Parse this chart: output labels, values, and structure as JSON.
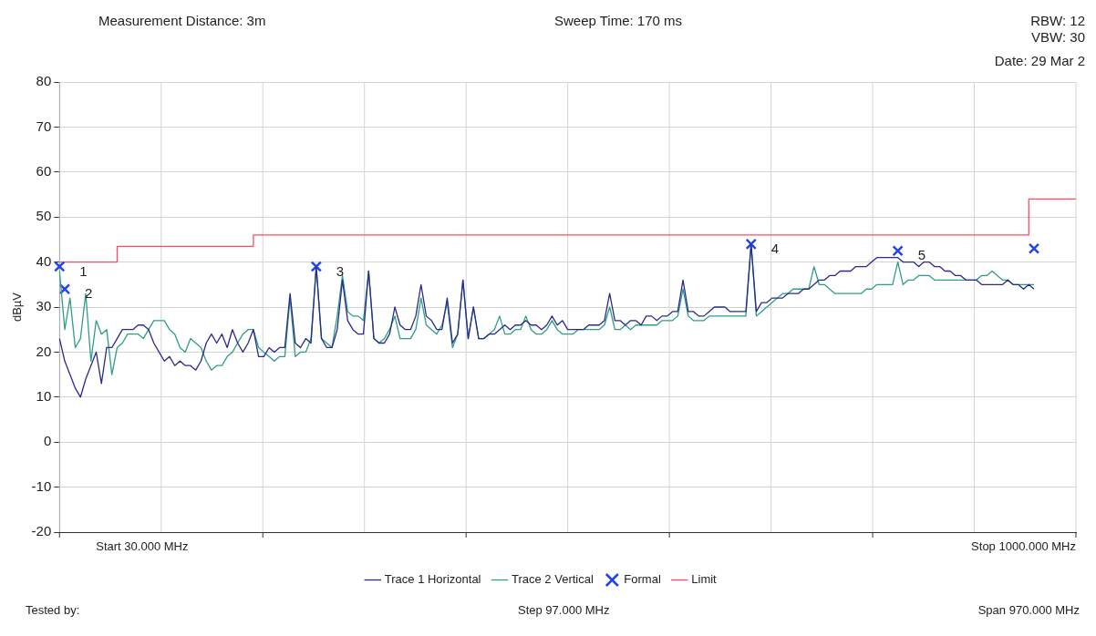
{
  "chart_data": {
    "type": "line",
    "ylabel": "dBµV",
    "categories": [
      null,
      null,
      null,
      null,
      null,
      null,
      null,
      null,
      null,
      null,
      null,
      null,
      null,
      null,
      null,
      null,
      null,
      null,
      null,
      null,
      null,
      null,
      null,
      null,
      null,
      null,
      null,
      null,
      null,
      null,
      null,
      null,
      null,
      null,
      null,
      null,
      null,
      null,
      null,
      null,
      null,
      null,
      null,
      null,
      null,
      null,
      null,
      null,
      null,
      null,
      null,
      null,
      null,
      null,
      null,
      null,
      null,
      null,
      null,
      null,
      null,
      null,
      null,
      null,
      null,
      null,
      null,
      null,
      null,
      null,
      null,
      null,
      null,
      null,
      null,
      null,
      null,
      null,
      null,
      null,
      null,
      null,
      null,
      null,
      null,
      null,
      null,
      null,
      null,
      null,
      null,
      null,
      null,
      null,
      null,
      null,
      null,
      null,
      null,
      null,
      null,
      null,
      null,
      null,
      null,
      null,
      null,
      null,
      null,
      null,
      null,
      null,
      null,
      null,
      null,
      null,
      null,
      null,
      null,
      null,
      null,
      null,
      null,
      null,
      null,
      null,
      null,
      null,
      null,
      null,
      null,
      null,
      null,
      null,
      null,
      null,
      null,
      null,
      null,
      null,
      null,
      null,
      null,
      null,
      null,
      null,
      null,
      null,
      null,
      null,
      null,
      null,
      null,
      null,
      null,
      null,
      null,
      null,
      null,
      null,
      null,
      null,
      null,
      null,
      null,
      null,
      null,
      null,
      null,
      null,
      null,
      null,
      null,
      null,
      null,
      null,
      null,
      null,
      null,
      null,
      null,
      null,
      null,
      null,
      null,
      null,
      null,
      null,
      null,
      null,
      null,
      null,
      null,
      null,
      null
    ],
    "ylim": [
      -20,
      80
    ],
    "yticks": [
      -20,
      -10,
      0,
      10,
      20,
      30,
      40,
      50,
      60,
      70,
      80
    ],
    "tick_labels": "y",
    "grid": true,
    "legend": "bottom",
    "annotations": [
      "Measurement Distance: 3m",
      "Sweep Time: 170 ms",
      "RBW: 12",
      "VBW: 30",
      "Date: 29 Mar 2",
      "Tested by:",
      "Start 30.000 MHz",
      "Stop 1000.000 MHz",
      "Step 97.000 MHz",
      "Span 970.000 MHz",
      "1",
      "2",
      "3",
      "4",
      "5"
    ],
    "series": [
      {
        "name": "Trace 1 Horizontal",
        "type": "line",
        "color": "#2b2a8c",
        "values": [
          23,
          18,
          15,
          12,
          10,
          14,
          17,
          20,
          13,
          21,
          21,
          23,
          25,
          25,
          25,
          26,
          26,
          25,
          22,
          20,
          18,
          19,
          17,
          18,
          17,
          17,
          16,
          18,
          22,
          24,
          22,
          24,
          21,
          25,
          22,
          20,
          22,
          25,
          19,
          19,
          21,
          20,
          21,
          21,
          33,
          22,
          21,
          23,
          22,
          39,
          23,
          21,
          21,
          25,
          36,
          27,
          25,
          24,
          24,
          38,
          23,
          22,
          22,
          24,
          30,
          26,
          25,
          25,
          28,
          35,
          28,
          27,
          25,
          25,
          32,
          22,
          24,
          36,
          23,
          30,
          23,
          23,
          24,
          24,
          25,
          26,
          25,
          26,
          26,
          27,
          26,
          26,
          25,
          26,
          28,
          26,
          27,
          25,
          25,
          25,
          25,
          26,
          26,
          26,
          27,
          33,
          27,
          27,
          26,
          27,
          27,
          26,
          28,
          28,
          27,
          28,
          28,
          29,
          29,
          36,
          29,
          29,
          28,
          28,
          29,
          30,
          30,
          30,
          29,
          29,
          29,
          29,
          44,
          29,
          31,
          31,
          32,
          32,
          32,
          33,
          33,
          33,
          34,
          34,
          35,
          36,
          36,
          37,
          37,
          38,
          38,
          38,
          39,
          39,
          39,
          40,
          41,
          41,
          41,
          41,
          41,
          40,
          40,
          40,
          39,
          40,
          40,
          39,
          39,
          38,
          38,
          37,
          37,
          36,
          36,
          36,
          35,
          35,
          35,
          35,
          35,
          36,
          35,
          35,
          34,
          35,
          34,
          null,
          null,
          null,
          null,
          null,
          null,
          null,
          null
        ]
      },
      {
        "name": "Trace 2 Vertical",
        "type": "line",
        "color": "#2f9e86",
        "values": [
          38,
          25,
          32,
          21,
          23,
          33,
          18,
          27,
          24,
          25,
          15,
          21,
          22,
          24,
          24,
          24,
          23,
          25,
          27,
          27,
          27,
          25,
          24,
          21,
          20,
          23,
          22,
          21,
          18,
          16,
          17,
          17,
          19,
          20,
          22,
          24,
          25,
          25,
          21,
          20,
          19,
          18,
          19,
          19,
          32,
          19,
          20,
          20,
          23,
          39,
          23,
          22,
          21,
          28,
          37,
          29,
          28,
          28,
          27,
          38,
          23,
          22,
          23,
          25,
          28,
          23,
          23,
          23,
          25,
          32,
          26,
          25,
          24,
          26,
          31,
          21,
          24,
          36,
          23,
          30,
          23,
          23,
          24,
          25,
          28,
          24,
          24,
          25,
          25,
          28,
          25,
          24,
          24,
          25,
          27,
          25,
          24,
          24,
          24,
          25,
          25,
          25,
          25,
          25,
          26,
          30,
          25,
          25,
          26,
          25,
          26,
          26,
          26,
          26,
          26,
          27,
          27,
          27,
          28,
          34,
          28,
          27,
          27,
          27,
          28,
          28,
          28,
          28,
          28,
          28,
          28,
          28,
          44,
          28,
          29,
          30,
          31,
          32,
          33,
          33,
          34,
          34,
          34,
          34,
          39,
          35,
          35,
          34,
          33,
          33,
          33,
          33,
          33,
          33,
          34,
          34,
          35,
          35,
          35,
          35,
          40,
          35,
          36,
          36,
          37,
          37,
          37,
          36,
          36,
          36,
          36,
          36,
          36,
          36,
          36,
          36,
          37,
          37,
          38,
          37,
          36,
          36,
          35,
          35,
          35,
          35,
          35,
          null,
          null,
          null,
          null,
          null,
          null,
          null,
          null
        ]
      },
      {
        "name": "Formal",
        "type": "scatter",
        "color": "#2244ee",
        "marker": "cross",
        "values": [
          39,
          34,
          null,
          null,
          null,
          null,
          null,
          null,
          null,
          null,
          null,
          null,
          null,
          null,
          null,
          null,
          null,
          null,
          null,
          null,
          null,
          null,
          null,
          null,
          null,
          null,
          null,
          null,
          null,
          null,
          null,
          null,
          null,
          null,
          null,
          null,
          null,
          null,
          null,
          null,
          null,
          null,
          null,
          null,
          null,
          null,
          null,
          null,
          null,
          39,
          null,
          null,
          null,
          null,
          null,
          null,
          null,
          null,
          null,
          null,
          null,
          null,
          null,
          null,
          null,
          null,
          null,
          null,
          null,
          null,
          null,
          null,
          null,
          null,
          null,
          null,
          null,
          null,
          null,
          null,
          null,
          null,
          null,
          null,
          null,
          null,
          null,
          null,
          null,
          null,
          null,
          null,
          null,
          null,
          null,
          null,
          null,
          null,
          null,
          null,
          null,
          null,
          null,
          null,
          null,
          null,
          null,
          null,
          null,
          null,
          null,
          null,
          null,
          null,
          null,
          null,
          null,
          null,
          null,
          null,
          null,
          null,
          null,
          null,
          null,
          null,
          null,
          null,
          null,
          null,
          null,
          null,
          44,
          null,
          null,
          null,
          null,
          null,
          null,
          null,
          null,
          null,
          null,
          null,
          null,
          null,
          null,
          null,
          null,
          null,
          null,
          null,
          null,
          null,
          null,
          null,
          null,
          null,
          null,
          null,
          42.5,
          null,
          null,
          null,
          null,
          null,
          null,
          null,
          null,
          null,
          null,
          null,
          null,
          null,
          null,
          null,
          null,
          null,
          null,
          null,
          null,
          null,
          null,
          null,
          null,
          null,
          43,
          null,
          null,
          null,
          null,
          null,
          null,
          null,
          null
        ]
      },
      {
        "name": "Limit",
        "type": "step",
        "color": "#ff4d5e",
        "values": [
          40,
          40,
          40,
          40,
          40,
          40,
          40,
          40,
          40,
          40,
          40,
          40,
          43.5,
          43.5,
          43.5,
          43.5,
          43.5,
          43.5,
          43.5,
          43.5,
          43.5,
          43.5,
          43.5,
          43.5,
          43.5,
          43.5,
          43.5,
          43.5,
          43.5,
          43.5,
          43.5,
          43.5,
          43.5,
          43.5,
          43.5,
          43.5,
          43.5,
          43.5,
          46,
          46,
          46,
          46,
          46,
          46,
          46,
          46,
          46,
          46,
          46,
          46,
          46,
          46,
          46,
          46,
          46,
          46,
          46,
          46,
          46,
          46,
          46,
          46,
          46,
          46,
          46,
          46,
          46,
          46,
          46,
          46,
          46,
          46,
          46,
          46,
          46,
          46,
          46,
          46,
          46,
          46,
          46,
          46,
          46,
          46,
          46,
          46,
          46,
          46,
          46,
          46,
          46,
          46,
          46,
          46,
          46,
          46,
          46,
          46,
          46,
          46,
          46,
          46,
          46,
          46,
          46,
          46,
          46,
          46,
          46,
          46,
          46,
          46,
          46,
          46,
          46,
          46,
          46,
          46,
          46,
          46,
          46,
          46,
          46,
          46,
          46,
          46,
          46,
          46,
          46,
          46,
          46,
          46,
          46,
          46,
          46,
          46,
          46,
          46,
          46,
          46,
          46,
          46,
          46,
          46,
          46,
          46,
          46,
          46,
          46,
          46,
          46,
          46,
          46,
          46,
          46,
          46,
          46,
          46,
          46,
          46,
          46,
          46,
          46,
          46,
          46,
          46,
          46,
          46,
          46,
          46,
          46,
          46,
          46,
          46,
          46,
          46,
          46,
          46,
          46,
          46,
          46,
          46,
          46,
          46,
          46,
          46,
          54,
          54,
          54,
          54,
          54,
          54,
          54,
          54,
          54
        ]
      }
    ]
  }
}
